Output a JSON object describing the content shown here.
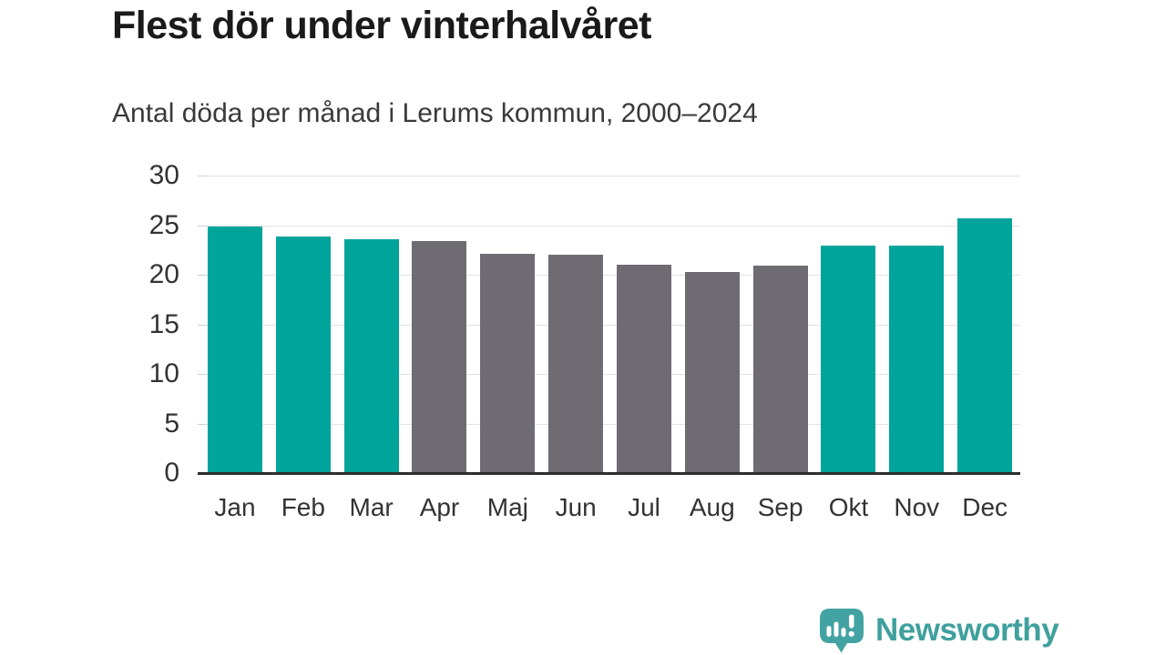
{
  "title": "Flest dör under vinterhalvåret",
  "subtitle": "Antal döda per månad i Lerums kommun, 2000–2024",
  "chart_data": {
    "type": "bar",
    "title": "Flest dör under vinterhalvåret",
    "subtitle": "Antal döda per månad i Lerums kommun, 2000–2024",
    "categories": [
      "Jan",
      "Feb",
      "Mar",
      "Apr",
      "Maj",
      "Jun",
      "Jul",
      "Aug",
      "Sep",
      "Okt",
      "Nov",
      "Dec"
    ],
    "values": [
      24.9,
      23.9,
      23.6,
      23.4,
      22.1,
      22.0,
      21.0,
      20.3,
      20.9,
      22.9,
      22.9,
      25.7
    ],
    "bar_colors": [
      "#00a49a",
      "#00a49a",
      "#00a49a",
      "#6e6c72",
      "#6e6c72",
      "#6e6c72",
      "#6e6c72",
      "#6e6c72",
      "#6e6c72",
      "#00a49a",
      "#00a49a",
      "#00a49a"
    ],
    "xlabel": "",
    "ylabel": "",
    "ylim": [
      0,
      30
    ],
    "yticks": [
      0,
      5,
      10,
      15,
      20,
      25,
      30
    ],
    "grid": true,
    "legend": "none",
    "colors": {
      "winter_teal": "#00a49a",
      "summer_gray": "#6e6c72"
    }
  },
  "footer": {
    "brand": "Newsworthy",
    "brand_color": "#3fa09e",
    "icon_color": "#43a3a2",
    "logo_icon": "bar-chart-speech-bubble-icon"
  }
}
